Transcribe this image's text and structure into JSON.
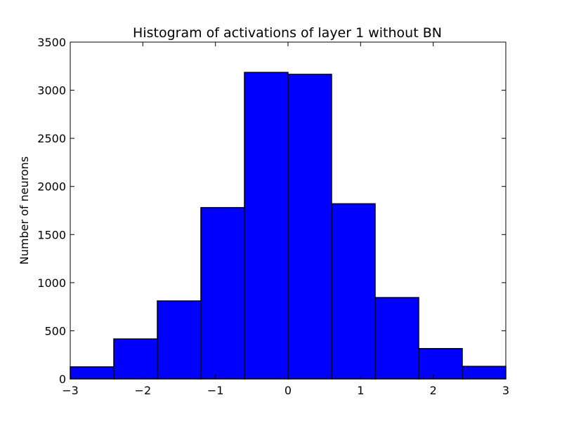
{
  "chart_data": {
    "type": "bar",
    "title": "Histogram of activations of layer 1  without BN",
    "xlabel": "",
    "ylabel": "Number of neurons",
    "xlim": [
      -3,
      3
    ],
    "ylim": [
      0,
      3500
    ],
    "bins": [
      {
        "x0": -3.0,
        "x1": -2.4,
        "value": 125
      },
      {
        "x0": -2.4,
        "x1": -1.8,
        "value": 415
      },
      {
        "x0": -1.8,
        "x1": -1.2,
        "value": 810
      },
      {
        "x0": -1.2,
        "x1": -0.6,
        "value": 1780
      },
      {
        "x0": -0.6,
        "x1": 0.0,
        "value": 3185
      },
      {
        "x0": 0.0,
        "x1": 0.6,
        "value": 3165
      },
      {
        "x0": 0.6,
        "x1": 1.2,
        "value": 1820
      },
      {
        "x0": 1.2,
        "x1": 1.8,
        "value": 845
      },
      {
        "x0": 1.8,
        "x1": 2.4,
        "value": 315
      },
      {
        "x0": 2.4,
        "x1": 3.0,
        "value": 130
      }
    ],
    "xticks": [
      {
        "value": -3,
        "label": "−3"
      },
      {
        "value": -2,
        "label": "−2"
      },
      {
        "value": -1,
        "label": "−1"
      },
      {
        "value": 0,
        "label": "0"
      },
      {
        "value": 1,
        "label": "1"
      },
      {
        "value": 2,
        "label": "2"
      },
      {
        "value": 3,
        "label": "3"
      }
    ],
    "yticks": [
      {
        "value": 0,
        "label": "0"
      },
      {
        "value": 500,
        "label": "500"
      },
      {
        "value": 1000,
        "label": "1000"
      },
      {
        "value": 1500,
        "label": "1500"
      },
      {
        "value": 2000,
        "label": "2000"
      },
      {
        "value": 2500,
        "label": "2500"
      },
      {
        "value": 3000,
        "label": "3000"
      },
      {
        "value": 3500,
        "label": "3500"
      }
    ],
    "bar_color": "#0000ff",
    "edge_color": "#000000",
    "grid": false,
    "legend": "none"
  }
}
